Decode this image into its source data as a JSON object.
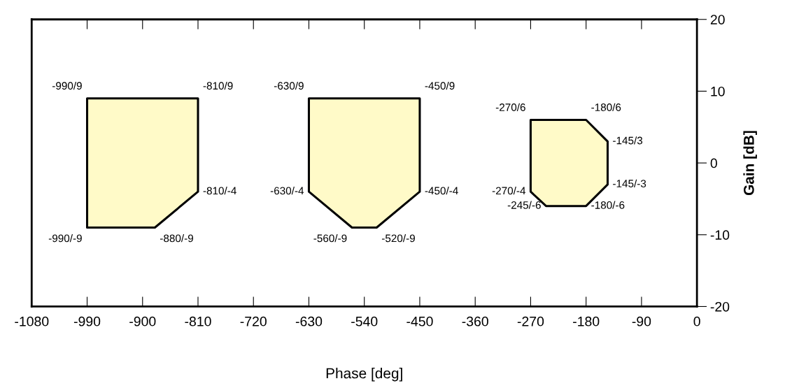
{
  "chart_data": {
    "type": "area",
    "xlabel": "Phase [deg]",
    "ylabel": "Gain [dB]",
    "xlim": [
      -1080,
      0
    ],
    "xticks": [
      -1080,
      -990,
      -900,
      -810,
      -720,
      -630,
      -540,
      -450,
      -360,
      -270,
      -180,
      -90,
      0
    ],
    "ylim": [
      -20,
      20
    ],
    "yticks": [
      -20,
      -10,
      0,
      10,
      20
    ],
    "grid": false,
    "legend": false,
    "series": [
      {
        "color": "#fffac8",
        "x": [
          -990,
          -810,
          -810,
          -880,
          -990
        ],
        "values": [
          9,
          9,
          -4,
          -9,
          -9
        ],
        "value_labels": [
          "-990/9",
          "-810/9",
          "-810/-4",
          "-880/-9",
          "-990/-9"
        ]
      },
      {
        "color": "#fffac8",
        "x": [
          -630,
          -450,
          -450,
          -520,
          -560,
          -630
        ],
        "values": [
          9,
          9,
          -4,
          -9,
          -9,
          -4
        ],
        "value_labels": [
          "-630/9",
          "-450/9",
          "-450/-4",
          "-520/-9",
          "-560/-9",
          "-630/-4"
        ]
      },
      {
        "color": "#fffac8",
        "x": [
          -270,
          -180,
          -145,
          -145,
          -180,
          -245,
          -270
        ],
        "values": [
          6,
          6,
          3,
          -3,
          -6,
          -6,
          -4
        ],
        "value_labels": [
          "-270/6",
          "-180/6",
          "-145/3",
          "-145/-3",
          "-180/-6",
          "-245/-6",
          "-270/-4"
        ]
      }
    ]
  }
}
